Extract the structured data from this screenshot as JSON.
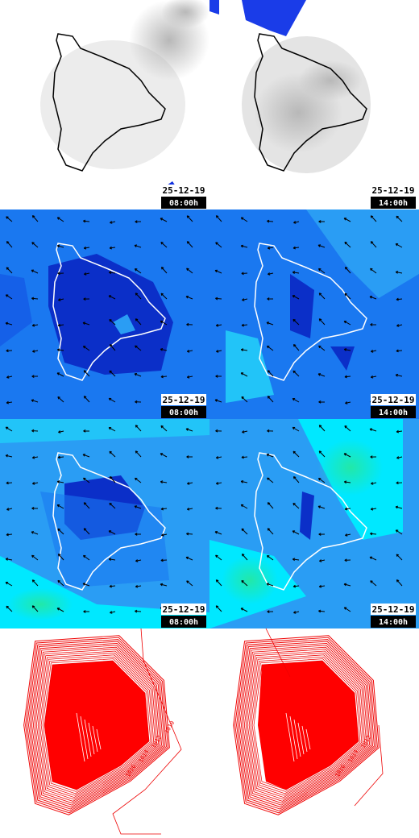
{
  "panels": [
    [
      {
        "date": "25-12-19",
        "time": "08:00h"
      },
      {
        "date": "25-12-19",
        "time": "14:00h"
      }
    ],
    [
      {
        "date": "25-12-19",
        "time": "08:00h"
      },
      {
        "date": "25-12-19",
        "time": "14:00h"
      }
    ],
    [
      {
        "date": "25-12-19",
        "time": "08:00h"
      },
      {
        "date": "25-12-19",
        "time": "14:00h"
      }
    ]
  ],
  "contour_labels": [
    [
      "1016",
      "1014",
      "1012",
      "1010"
    ],
    [
      "1016",
      "1014",
      "1012"
    ]
  ]
}
